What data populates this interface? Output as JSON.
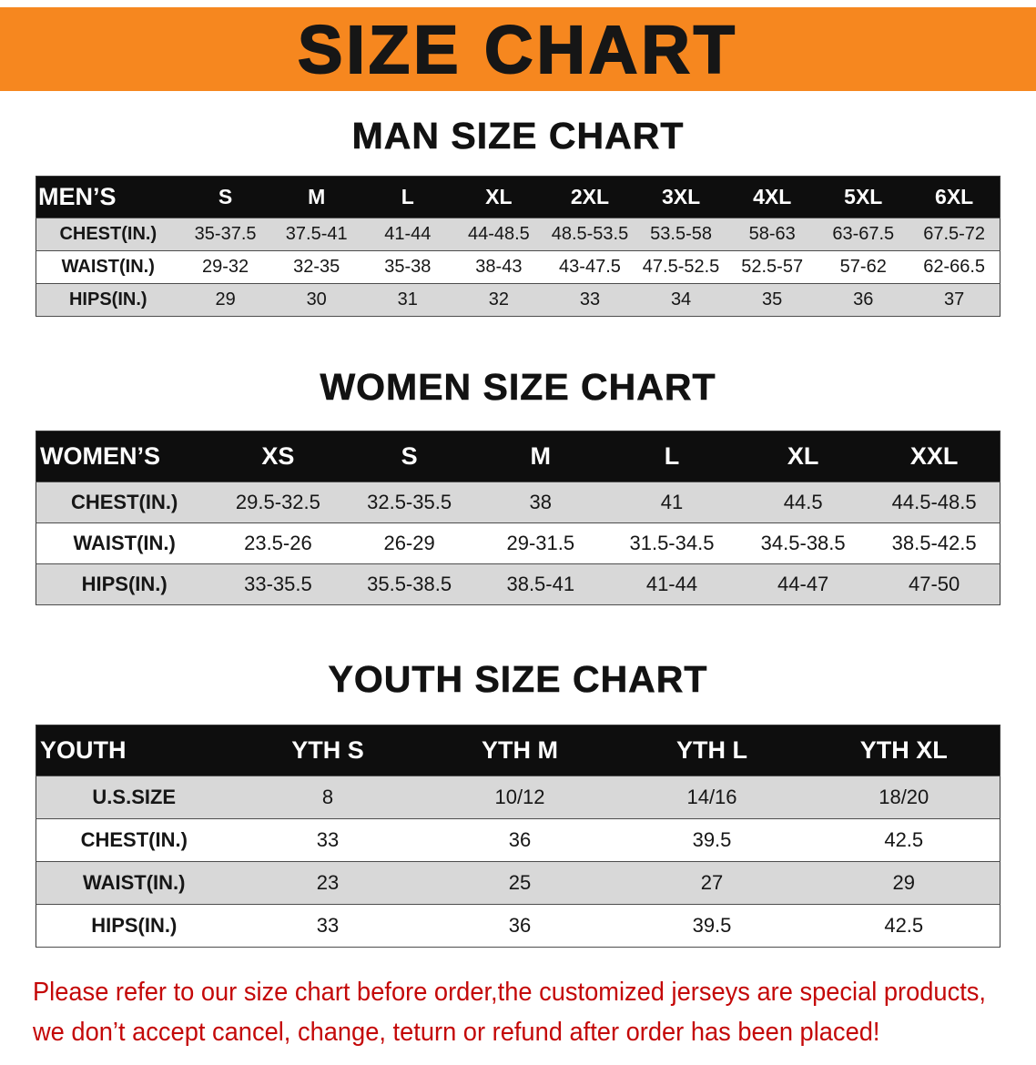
{
  "banner": {
    "title": "SIZE CHART"
  },
  "colors": {
    "banner-bg": "#F6871F",
    "header-bg": "#0E0E0E",
    "row-gray": "#D8D8D8",
    "disclaimer-red": "#C40808"
  },
  "chart_data": [
    {
      "type": "table",
      "title": "MAN SIZE CHART",
      "columns": [
        "MEN’S",
        "S",
        "M",
        "L",
        "XL",
        "2XL",
        "3XL",
        "4XL",
        "5XL",
        "6XL"
      ],
      "rows": [
        [
          "CHEST(IN.)",
          "35-37.5",
          "37.5-41",
          "41-44",
          "44-48.5",
          "48.5-53.5",
          "53.5-58",
          "58-63",
          "63-67.5",
          "67.5-72"
        ],
        [
          "WAIST(IN.)",
          "29-32",
          "32-35",
          "35-38",
          "38-43",
          "43-47.5",
          "47.5-52.5",
          "52.5-57",
          "57-62",
          "62-66.5"
        ],
        [
          "HIPS(IN.)",
          "29",
          "30",
          "31",
          "32",
          "33",
          "34",
          "35",
          "36",
          "37"
        ]
      ]
    },
    {
      "type": "table",
      "title": "WOMEN SIZE CHART",
      "columns": [
        "WOMEN’S",
        "XS",
        "S",
        "M",
        "L",
        "XL",
        "XXL"
      ],
      "rows": [
        [
          "CHEST(IN.)",
          "29.5-32.5",
          "32.5-35.5",
          "38",
          "41",
          "44.5",
          "44.5-48.5"
        ],
        [
          "WAIST(IN.)",
          "23.5-26",
          "26-29",
          "29-31.5",
          "31.5-34.5",
          "34.5-38.5",
          "38.5-42.5"
        ],
        [
          "HIPS(IN.)",
          "33-35.5",
          "35.5-38.5",
          "38.5-41",
          "41-44",
          "44-47",
          "47-50"
        ]
      ]
    },
    {
      "type": "table",
      "title": "YOUTH SIZE CHART",
      "columns": [
        "YOUTH",
        "YTH S",
        "YTH M",
        "YTH L",
        "YTH XL"
      ],
      "rows": [
        [
          "U.S.SIZE",
          "8",
          "10/12",
          "14/16",
          "18/20"
        ],
        [
          "CHEST(IN.)",
          "33",
          "36",
          "39.5",
          "42.5"
        ],
        [
          "WAIST(IN.)",
          "23",
          "25",
          "27",
          "29"
        ],
        [
          "HIPS(IN.)",
          "33",
          "36",
          "39.5",
          "42.5"
        ]
      ]
    }
  ],
  "disclaimer": {
    "line1": "Please refer to our size chart before order,the customized jerseys are special products,",
    "line2": "we don’t accept cancel, change, teturn or refund after order has been placed!"
  }
}
